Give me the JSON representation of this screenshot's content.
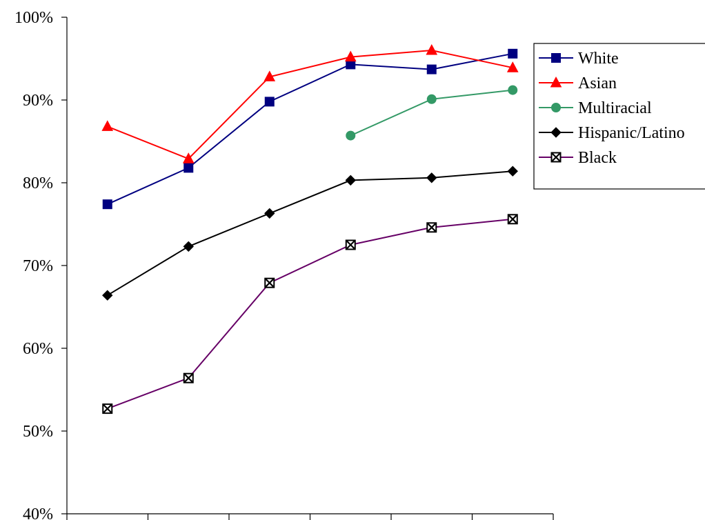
{
  "chart_data": {
    "type": "line",
    "title": "",
    "xlabel": "",
    "ylabel": "",
    "ylim": [
      0.4,
      1.0
    ],
    "y_ticks": [
      {
        "value": 1.0,
        "label": "100%"
      },
      {
        "value": 0.9,
        "label": "90%"
      },
      {
        "value": 0.8,
        "label": "80%"
      },
      {
        "value": 0.7,
        "label": "70%"
      },
      {
        "value": 0.6,
        "label": "60%"
      },
      {
        "value": 0.5,
        "label": "50%"
      },
      {
        "value": 0.4,
        "label": "40%"
      }
    ],
    "x_category_count": 6,
    "x_tick_labels": [],
    "grid": false,
    "legend_position": "right",
    "series": [
      {
        "name": "White",
        "color": "#000080",
        "marker": "square",
        "values": [
          0.774,
          0.818,
          0.898,
          0.943,
          0.937,
          0.956
        ]
      },
      {
        "name": "Asian",
        "color": "#ff0000",
        "marker": "triangle",
        "values": [
          0.868,
          0.829,
          0.928,
          0.952,
          0.96,
          0.939
        ]
      },
      {
        "name": "Multiracial",
        "color": "#339966",
        "marker": "circle",
        "values": [
          null,
          null,
          null,
          0.857,
          0.901,
          0.912
        ]
      },
      {
        "name": "Hispanic/Latino",
        "color": "#000000",
        "marker": "diamond",
        "values": [
          0.664,
          0.723,
          0.763,
          0.803,
          0.806,
          0.814
        ]
      },
      {
        "name": "Black",
        "color": "#660066",
        "marker": "x-square",
        "values": [
          0.527,
          0.564,
          0.679,
          0.725,
          0.746,
          0.756
        ]
      }
    ]
  }
}
